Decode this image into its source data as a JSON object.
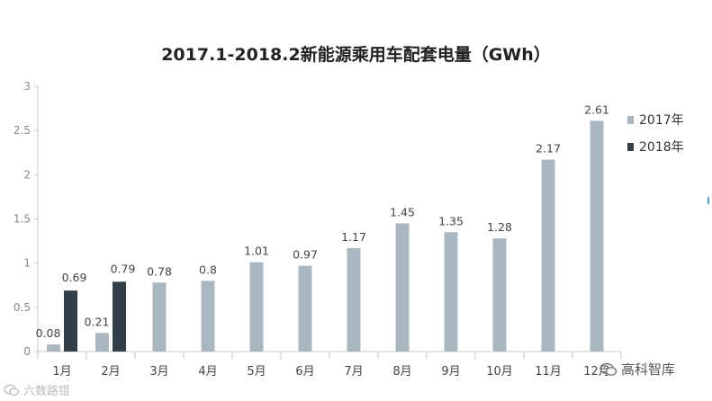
{
  "chart_data": {
    "type": "bar",
    "title": "2017.1-2018.2新能源乘用车配套电量（GWh）",
    "categories": [
      "1月",
      "2月",
      "3月",
      "4月",
      "5月",
      "6月",
      "7月",
      "8月",
      "9月",
      "10月",
      "11月",
      "12月"
    ],
    "series": [
      {
        "name": "2017年",
        "color": "#a9b7c1",
        "values": [
          0.08,
          0.21,
          0.78,
          0.8,
          1.01,
          0.97,
          1.17,
          1.45,
          1.35,
          1.28,
          2.17,
          2.61
        ],
        "labels": [
          "0.08",
          "0.21",
          "0.78",
          "0.8",
          "1.01",
          "0.97",
          "1.17",
          "1.45",
          "1.35",
          "1.28",
          "2.17",
          "2.61"
        ]
      },
      {
        "name": "2018年",
        "color": "#333f48",
        "values": [
          0.69,
          0.79,
          null,
          null,
          null,
          null,
          null,
          null,
          null,
          null,
          null,
          null
        ],
        "labels": [
          "0.69",
          "0.79"
        ]
      }
    ],
    "ylim": [
      0,
      3
    ],
    "yticks": [
      "0",
      "0.5",
      "1",
      "1.5",
      "2",
      "2.5",
      "3"
    ],
    "grid": false,
    "legend_position": "right"
  },
  "watermarks": {
    "right_text": "高科智库",
    "left_text": "六数路锟",
    "icon": "wechat-icon"
  },
  "colors": {
    "axis": "#c9c9c9",
    "tick_text": "#888888",
    "label_text": "#444444"
  }
}
